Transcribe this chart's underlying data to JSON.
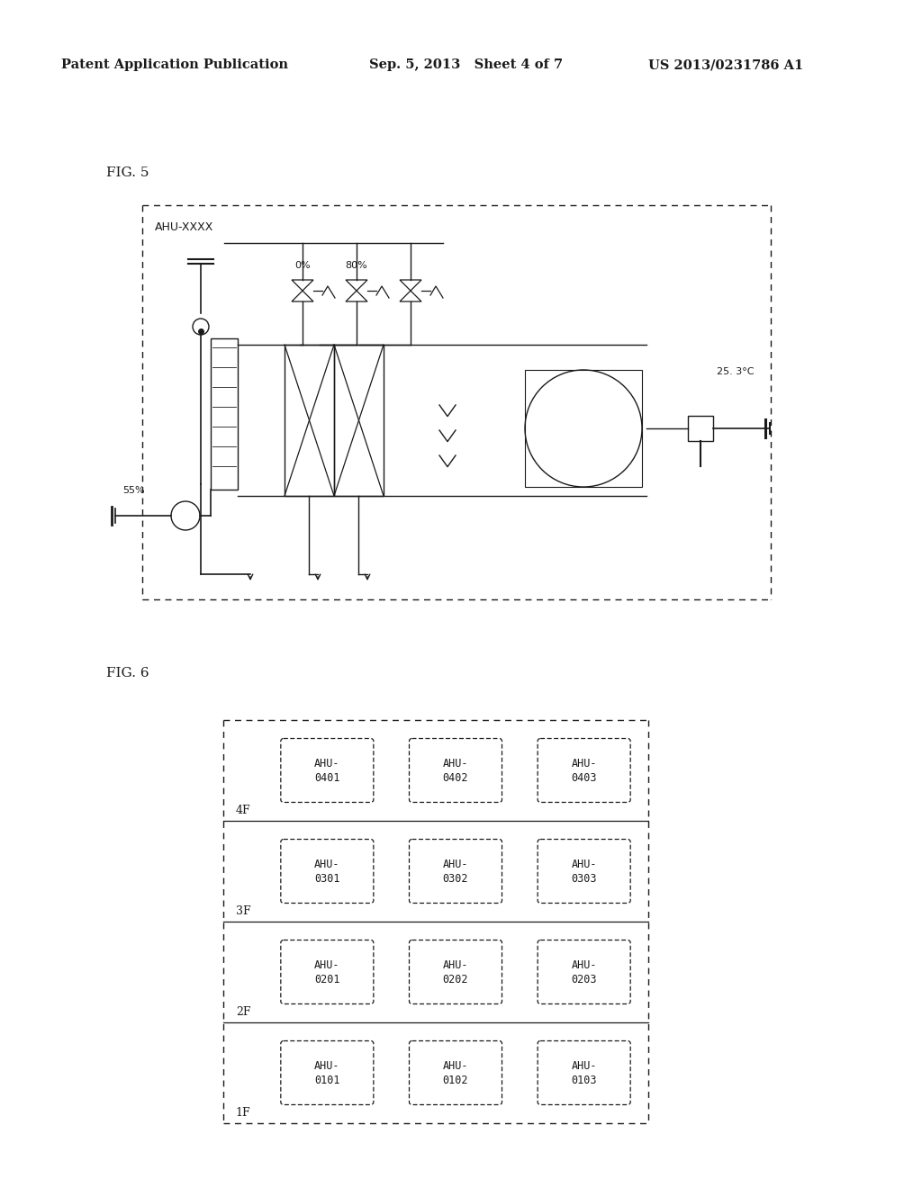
{
  "header_left": "Patent Application Publication",
  "header_mid": "Sep. 5, 2013   Sheet 4 of 7",
  "header_right": "US 2013/0231786 A1",
  "fig5_label": "FIG. 5",
  "fig6_label": "FIG. 6",
  "ahu_title": "AHU-XXXX",
  "label_0pct": "0%",
  "label_80pct": "80%",
  "label_55pct": "55%",
  "label_temp": "25. 3°C",
  "grid_labels": [
    [
      "4F",
      "AHU-\n0401",
      "AHU-\n0402",
      "AHU-\n0403"
    ],
    [
      "3F",
      "AHU-\n0301",
      "AHU-\n0302",
      "AHU-\n0303"
    ],
    [
      "2F",
      "AHU-\n0201",
      "AHU-\n0202",
      "AHU-\n0203"
    ],
    [
      "1F",
      "AHU-\n0101",
      "AHU-\n0102",
      "AHU-\n0103"
    ]
  ],
  "bg_color": "#ffffff",
  "line_color": "#1a1a1a"
}
